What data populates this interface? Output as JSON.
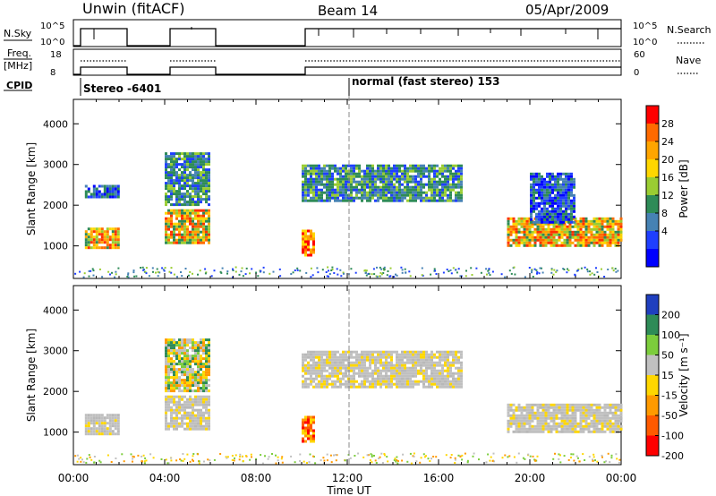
{
  "header": {
    "station": "Unwin (fitACF)",
    "beam": "Beam 14",
    "date": "05/Apr/2009"
  },
  "strips": {
    "nsky_label": "N.Sky",
    "nsky_ticks": [
      "10^5",
      "10^0"
    ],
    "nsearch_label": "N.Search",
    "nsearch_ticks": [
      "10^5",
      "10^0"
    ],
    "freq_label": "Freq.",
    "freq_unit": "[MHz]",
    "freq_ticks": [
      "18",
      "8"
    ],
    "nave_label": "Nave",
    "nave_ticks": [
      "60",
      "0"
    ],
    "cpid_label": "CPID",
    "cpid_modes": [
      "Stereo -6401",
      "normal (fast stereo) 153"
    ]
  },
  "chart_data": [
    {
      "type": "heatmap",
      "panel": "power",
      "ylabel": "Slant Range [km]",
      "yticks": [
        1000,
        2000,
        3000,
        4000
      ],
      "ylim": [
        200,
        4600
      ],
      "xlim": [
        0,
        24
      ],
      "xticks": [
        "00:00",
        "04:00",
        "08:00",
        "12:00",
        "16:00",
        "20:00",
        "00:00"
      ],
      "colorbar_label": "Power [dB]",
      "colorbar_ticks": [
        "28",
        "24",
        "20",
        "16",
        "12",
        "8",
        "4"
      ],
      "colorbar_colors": [
        "#ff0000",
        "#ff6a00",
        "#ffa500",
        "#ffd700",
        "#9acd32",
        "#2e8b57",
        "#4682b4",
        "#1f3fff",
        "#0000ff"
      ],
      "data_blocks": [
        {
          "t_start": 0.5,
          "t_end": 2.0,
          "range_low": 950,
          "range_high": 1450,
          "level": "high"
        },
        {
          "t_start": 0.5,
          "t_end": 2.0,
          "range_low": 2200,
          "range_high": 2500,
          "level": "low"
        },
        {
          "t_start": 4.0,
          "t_end": 6.0,
          "range_low": 1100,
          "range_high": 1900,
          "level": "high"
        },
        {
          "t_start": 4.0,
          "t_end": 6.0,
          "range_low": 2000,
          "range_high": 3300,
          "level": "mid"
        },
        {
          "t_start": 10.0,
          "t_end": 10.5,
          "range_low": 800,
          "range_high": 1400,
          "level": "very_high"
        },
        {
          "t_start": 10.0,
          "t_end": 17.0,
          "range_low": 2100,
          "range_high": 3000,
          "level": "mid"
        },
        {
          "t_start": 19.0,
          "t_end": 24.0,
          "range_low": 1000,
          "range_high": 1700,
          "level": "high"
        },
        {
          "t_start": 20.0,
          "t_end": 22.0,
          "range_low": 1600,
          "range_high": 2800,
          "level": "low"
        }
      ]
    },
    {
      "type": "heatmap",
      "panel": "velocity",
      "ylabel": "Slant Range [km]",
      "yticks": [
        1000,
        2000,
        3000,
        4000
      ],
      "ylim": [
        200,
        4600
      ],
      "xlim": [
        0,
        24
      ],
      "xticks": [
        "00:00",
        "04:00",
        "08:00",
        "12:00",
        "16:00",
        "20:00",
        "00:00"
      ],
      "xlabel": "Time UT",
      "colorbar_label": "Velocity [m s⁻¹]",
      "colorbar_ticks": [
        "200",
        "100",
        "50",
        "15",
        "-15",
        "-50",
        "-100",
        "-200"
      ],
      "colorbar_colors": [
        "#1f3fbf",
        "#2e8b57",
        "#7ccd3c",
        "#c0c0c0",
        "#ffd700",
        "#ff9a00",
        "#ff5a00",
        "#ff0000"
      ],
      "data_blocks": [
        {
          "t_start": 0.5,
          "t_end": 2.0,
          "range_low": 950,
          "range_high": 1450,
          "level": "ground"
        },
        {
          "t_start": 4.0,
          "t_end": 6.0,
          "range_low": 1100,
          "range_high": 1900,
          "level": "ground"
        },
        {
          "t_start": 4.0,
          "t_end": 6.0,
          "range_low": 2000,
          "range_high": 3300,
          "level": "mixed"
        },
        {
          "t_start": 10.0,
          "t_end": 10.5,
          "range_low": 800,
          "range_high": 1400,
          "level": "negative"
        },
        {
          "t_start": 10.0,
          "t_end": 17.0,
          "range_low": 2100,
          "range_high": 3000,
          "level": "ground"
        },
        {
          "t_start": 19.0,
          "t_end": 24.0,
          "range_low": 1000,
          "range_high": 1700,
          "level": "ground"
        }
      ]
    }
  ]
}
